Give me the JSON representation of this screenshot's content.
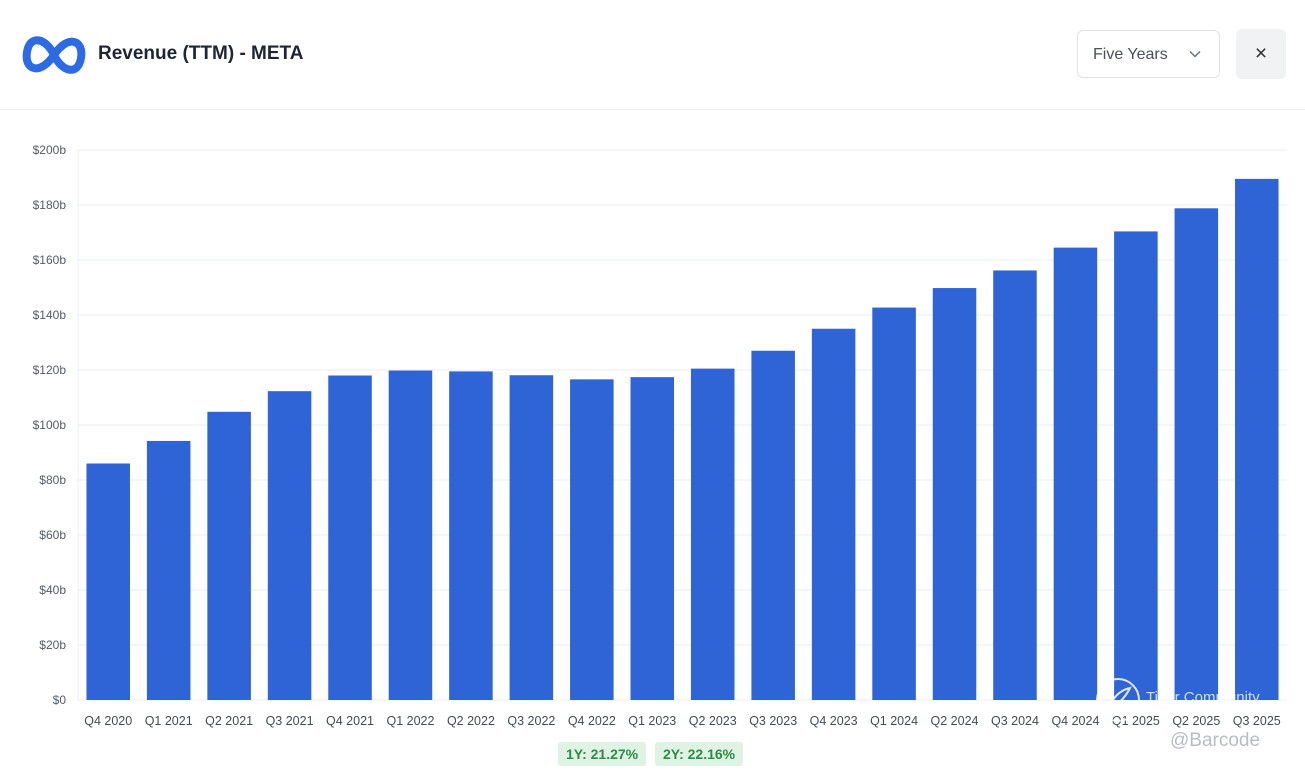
{
  "header": {
    "title": "Revenue (TTM) - META",
    "period_select": {
      "selected": "Five Years"
    },
    "close_label": "×"
  },
  "chart_data": {
    "type": "bar",
    "title": "Revenue (TTM) - META",
    "xlabel": "",
    "ylabel": "",
    "ylim": [
      0,
      200
    ],
    "yticks": [
      0,
      20,
      40,
      60,
      80,
      100,
      120,
      140,
      160,
      180,
      200
    ],
    "ytick_labels": [
      "$0",
      "$20b",
      "$40b",
      "$60b",
      "$80b",
      "$100b",
      "$120b",
      "$140b",
      "$160b",
      "$180b",
      "$200b"
    ],
    "grid": true,
    "categories": [
      "Q4 2020",
      "Q1 2021",
      "Q2 2021",
      "Q3 2021",
      "Q4 2021",
      "Q1 2022",
      "Q2 2022",
      "Q3 2022",
      "Q4 2022",
      "Q1 2023",
      "Q2 2023",
      "Q3 2023",
      "Q4 2023",
      "Q1 2024",
      "Q2 2024",
      "Q3 2024",
      "Q4 2024",
      "Q1 2025",
      "Q2 2025",
      "Q3 2025"
    ],
    "values": [
      86.0,
      94.2,
      104.8,
      112.3,
      118.0,
      119.8,
      119.5,
      118.1,
      116.6,
      117.4,
      120.5,
      127.0,
      135.0,
      142.7,
      149.8,
      156.2,
      164.5,
      170.4,
      178.8,
      189.5
    ],
    "bar_color": "#2e64d6"
  },
  "growth": {
    "one_year": "1Y: 21.27%",
    "two_year": "2Y: 22.16%"
  },
  "watermark": {
    "brand": "Tiger Community",
    "handle": "@Barcode"
  }
}
